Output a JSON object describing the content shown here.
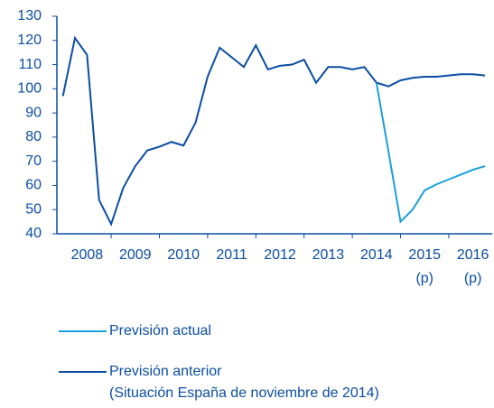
{
  "chart_data": {
    "type": "line",
    "x": [
      2008,
      2008.25,
      2008.5,
      2008.75,
      2009,
      2009.25,
      2009.5,
      2009.75,
      2010,
      2010.25,
      2010.5,
      2010.75,
      2011,
      2011.25,
      2011.5,
      2011.75,
      2012,
      2012.25,
      2012.5,
      2012.75,
      2013,
      2013.25,
      2013.5,
      2013.75,
      2014,
      2014.25,
      2014.5,
      2014.75,
      2015,
      2015.25,
      2015.5,
      2015.75,
      2016,
      2016.25,
      2016.5,
      2016.75
    ],
    "series": [
      {
        "name": "Previsión actual",
        "color": "#1aa0dc",
        "values": [
          null,
          null,
          null,
          null,
          null,
          null,
          null,
          null,
          null,
          null,
          null,
          null,
          null,
          null,
          null,
          null,
          null,
          null,
          null,
          null,
          null,
          null,
          null,
          null,
          null,
          null,
          102.5,
          74,
          45,
          50,
          58,
          60.5,
          62.5,
          64.5,
          66.5,
          68
        ]
      },
      {
        "name": "Previsión anterior",
        "description": "(Situación España de noviembre de 2014)",
        "color": "#0b4ea2",
        "values": [
          97,
          121,
          114,
          54,
          44,
          59,
          68,
          74.5,
          76,
          78,
          76.5,
          86,
          105,
          117,
          113,
          109,
          118,
          108,
          109.5,
          110,
          112,
          102.5,
          109,
          109,
          108,
          109,
          102.5,
          101,
          103.5,
          104.5,
          105,
          105,
          105.5,
          106,
          106,
          105.5
        ]
      }
    ],
    "xlim": [
      2007.875,
      2016.9
    ],
    "xticks": [
      {
        "value": 2008.5,
        "label": "2008"
      },
      {
        "value": 2009.5,
        "label": "2009"
      },
      {
        "value": 2010.5,
        "label": "2010"
      },
      {
        "value": 2011.5,
        "label": "2011"
      },
      {
        "value": 2012.5,
        "label": "2012"
      },
      {
        "value": 2013.5,
        "label": "2013"
      },
      {
        "value": 2014.5,
        "label": "2014"
      },
      {
        "value": 2015.5,
        "label": "2015",
        "note": "(p)"
      },
      {
        "value": 2016.5,
        "label": "2016",
        "note": "(p)"
      }
    ],
    "ylim": [
      40,
      130
    ],
    "yticks": [
      40,
      50,
      60,
      70,
      80,
      90,
      100,
      110,
      120,
      130
    ]
  }
}
